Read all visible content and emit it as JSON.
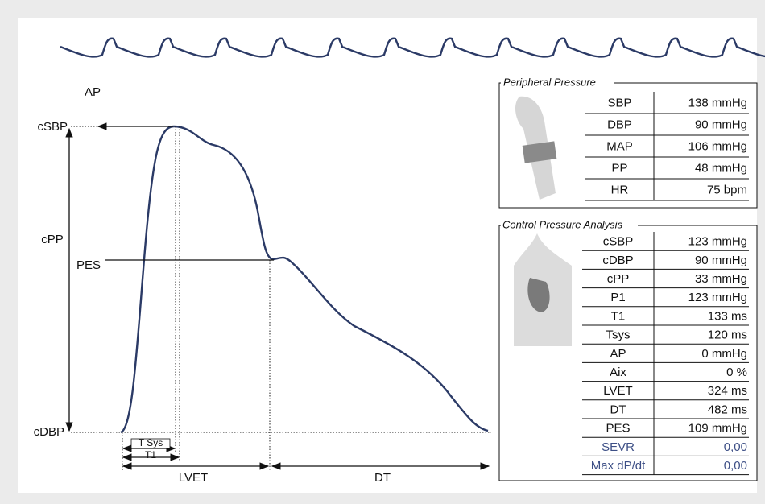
{
  "labels": {
    "ap": "AP",
    "csbp": "cSBP",
    "cpp": "cPP",
    "pes": "PES",
    "cdbp": "cDBP",
    "tsys": "T Sys",
    "t1": "T1",
    "lvet": "LVET",
    "dt": "DT"
  },
  "peripheral": {
    "title": "Peripheral Pressure",
    "rows": [
      [
        "SBP",
        "138 mmHg"
      ],
      [
        "DBP",
        "90 mmHg"
      ],
      [
        "MAP",
        "106 mmHg"
      ],
      [
        "PP",
        "48 mmHg"
      ],
      [
        "HR",
        "75 bpm"
      ]
    ]
  },
  "central": {
    "title": "Control Pressure Analysis",
    "rows": [
      [
        "cSBP",
        "123 mmHg"
      ],
      [
        "cDBP",
        "90 mmHg"
      ],
      [
        "cPP",
        "33 mmHg"
      ],
      [
        "P1",
        "123 mmHg"
      ],
      [
        "T1",
        "133 ms"
      ],
      [
        "Tsys",
        "120 ms"
      ],
      [
        "AP",
        "0 mmHg"
      ],
      [
        "Aix",
        "0 %"
      ],
      [
        "LVET",
        "324 ms"
      ],
      [
        "DT",
        "482 ms"
      ],
      [
        "PES",
        "109 mmHg"
      ],
      [
        "SEVR",
        "0,00"
      ],
      [
        "Max dP/dt",
        "0,00"
      ]
    ]
  }
}
